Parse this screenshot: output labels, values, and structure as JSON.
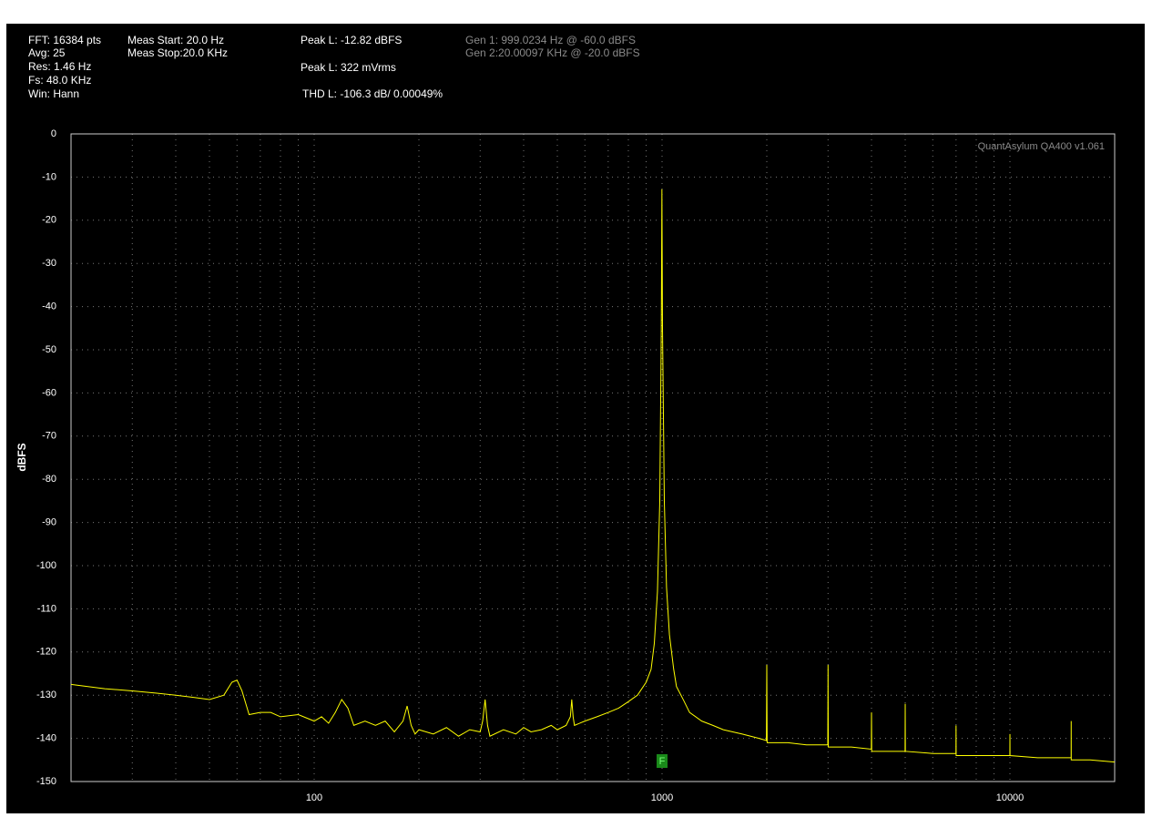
{
  "chart_data": {
    "type": "line",
    "info": [
      "FFT: 16384 pts",
      "Avg: 25",
      "Res: 1.46 Hz",
      "Fs: 48.0 KHz",
      "Win: Hann",
      "Meas Start: 20.0 Hz",
      "Meas Stop:20.0 KHz",
      "Peak L: -12.82 dBFS",
      "Peak L: 322 mVrms",
      "THD L: -106.3 dB/ 0.00049%",
      "Gen 1: 999.0234 Hz @ -60.0  dBFS",
      "Gen 2:20.00097 KHz @ -20.0  dBFS"
    ],
    "watermark": "QuantAsylum QA400 v1.061",
    "ylabel": "dBFS",
    "x_scale": "log",
    "xlim": [
      20,
      20000
    ],
    "xticks": [
      100,
      1000,
      10000
    ],
    "xgrid": [
      30,
      40,
      50,
      60,
      70,
      80,
      90,
      200,
      300,
      400,
      500,
      600,
      700,
      800,
      900,
      2000,
      3000,
      4000,
      5000,
      6000,
      7000,
      8000,
      9000
    ],
    "ylim": [
      -150,
      0
    ],
    "yticks": [
      0,
      -10,
      -20,
      -30,
      -40,
      -50,
      -60,
      -70,
      -80,
      -90,
      -100,
      -110,
      -120,
      -130,
      -140,
      -150
    ],
    "grid": true,
    "color": "#ffff00",
    "marker": {
      "label": "F",
      "x": 1000
    },
    "x": [
      20,
      25,
      30,
      35,
      40,
      45,
      50,
      55,
      58,
      60,
      62,
      65,
      70,
      75,
      80,
      90,
      100,
      105,
      110,
      115,
      120,
      125,
      130,
      140,
      150,
      160,
      170,
      180,
      185,
      190,
      195,
      200,
      220,
      240,
      260,
      280,
      300,
      305,
      310,
      315,
      320,
      350,
      380,
      400,
      420,
      450,
      480,
      500,
      530,
      545,
      550,
      555,
      560,
      600,
      650,
      700,
      750,
      800,
      850,
      900,
      930,
      950,
      970,
      985,
      995,
      999,
      1003,
      1015,
      1030,
      1050,
      1080,
      1100,
      1150,
      1200,
      1300,
      1400,
      1500,
      1700,
      1900,
      1995,
      2000,
      2005,
      2300,
      2600,
      2995,
      3000,
      3005,
      3500,
      3995,
      4000,
      4005,
      4500,
      4995,
      5000,
      5005,
      6000,
      6995,
      7000,
      7005,
      8500,
      9995,
      10000,
      10005,
      12000,
      14995,
      15000,
      15005,
      17000,
      20000
    ],
    "values": [
      -127.5,
      -128.5,
      -129,
      -129.5,
      -130,
      -130.5,
      -131,
      -130,
      -127,
      -126.5,
      -129,
      -134.5,
      -134,
      -134,
      -135,
      -134.5,
      -136,
      -135,
      -136.5,
      -134,
      -131,
      -133,
      -137,
      -136,
      -137,
      -136,
      -138.5,
      -136,
      -132.5,
      -137,
      -139,
      -138,
      -139,
      -137.5,
      -139.5,
      -138,
      -138.5,
      -136,
      -131,
      -137,
      -139.5,
      -138,
      -139,
      -137.5,
      -138.5,
      -138,
      -137,
      -138,
      -137,
      -135,
      -131,
      -135,
      -137,
      -136,
      -135,
      -134,
      -133,
      -131.5,
      -130,
      -127,
      -124,
      -118,
      -106,
      -85,
      -45,
      -12.82,
      -45,
      -85,
      -105,
      -116,
      -124,
      -128,
      -131,
      -134,
      -136,
      -137,
      -138,
      -139,
      -140,
      -140.5,
      -123,
      -141,
      -141,
      -141.5,
      -141.5,
      -123,
      -142,
      -142,
      -142.5,
      -134,
      -143,
      -143,
      -143,
      -132,
      -143,
      -143.5,
      -143.5,
      -137,
      -144,
      -144,
      -144,
      -139,
      -144,
      -144.5,
      -144.5,
      -136,
      -145,
      -145,
      -145.5
    ]
  }
}
